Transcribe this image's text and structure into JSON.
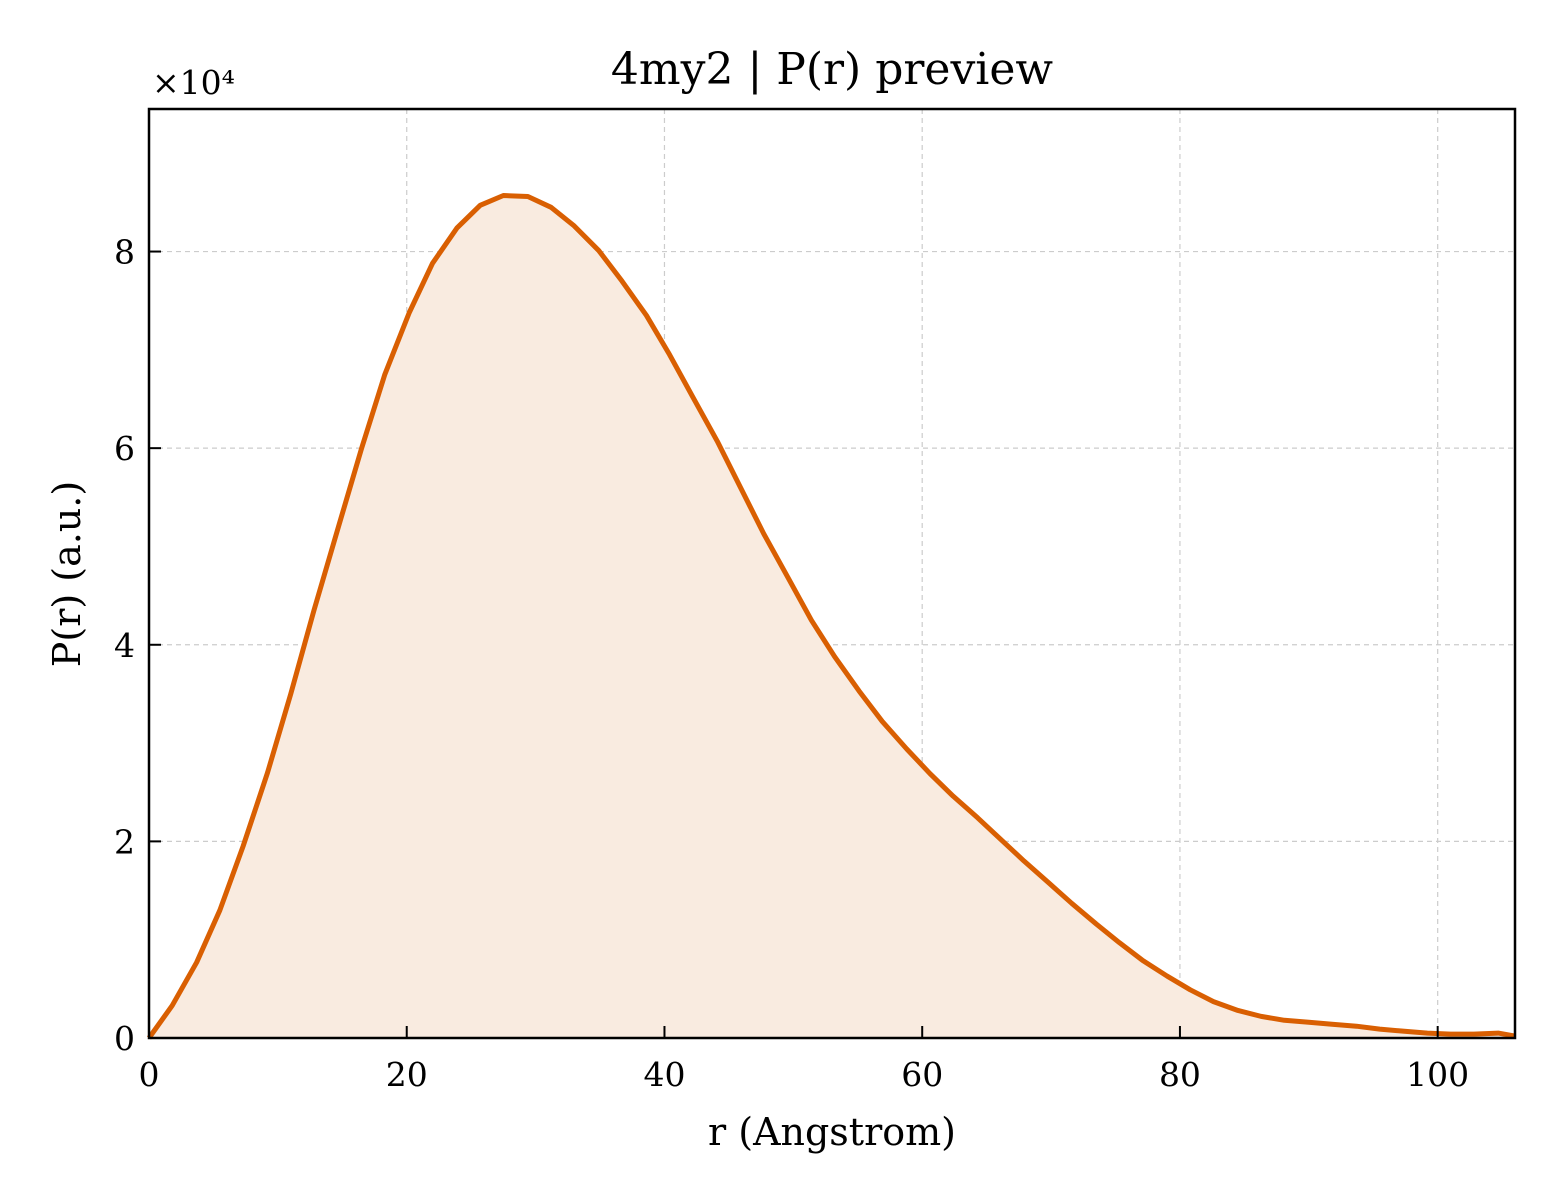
{
  "chart_data": {
    "type": "area",
    "title": "4my2 | P(r) preview",
    "xlabel": "r (Angstrom)",
    "ylabel": "P(r) (a.u.)",
    "y_multiplier_label": "×10⁴",
    "xlim": [
      0,
      106
    ],
    "ylim": [
      0,
      9.45
    ],
    "x_ticks": [
      0,
      20,
      40,
      60,
      80,
      100
    ],
    "y_ticks": [
      0,
      2,
      4,
      6,
      8
    ],
    "grid": true,
    "line_color": "#d95f02",
    "fill_color": "#f9ebe0",
    "series": [
      {
        "x": [
          0,
          1.8,
          3.7,
          5.5,
          7.3,
          9.2,
          11.0,
          12.8,
          14.7,
          16.5,
          18.3,
          20.2,
          22.0,
          23.9,
          25.7,
          27.5,
          29.4,
          31.2,
          33.0,
          34.9,
          36.7,
          38.6,
          40.4,
          42.2,
          44.1,
          45.9,
          47.7,
          49.6,
          51.4,
          53.2,
          55.1,
          56.9,
          58.8,
          60.6,
          62.4,
          64.3,
          66.1,
          67.9,
          69.8,
          71.6,
          73.5,
          75.3,
          77.1,
          79.0,
          80.8,
          82.6,
          84.5,
          86.3,
          88.1,
          90.0,
          91.8,
          93.7,
          95.5,
          97.3,
          99.2,
          101.0,
          102.8,
          104.7,
          106.0
        ],
        "y": [
          0.0,
          0.33,
          0.77,
          1.3,
          1.95,
          2.7,
          3.5,
          4.35,
          5.2,
          6.0,
          6.75,
          7.38,
          7.88,
          8.24,
          8.47,
          8.57,
          8.56,
          8.45,
          8.26,
          8.01,
          7.7,
          7.35,
          6.95,
          6.52,
          6.07,
          5.6,
          5.13,
          4.68,
          4.25,
          3.88,
          3.53,
          3.22,
          2.94,
          2.69,
          2.46,
          2.24,
          2.02,
          1.8,
          1.58,
          1.37,
          1.16,
          0.97,
          0.79,
          0.63,
          0.49,
          0.37,
          0.28,
          0.22,
          0.18,
          0.16,
          0.14,
          0.12,
          0.09,
          0.07,
          0.05,
          0.04,
          0.04,
          0.05,
          0.02
        ]
      }
    ]
  }
}
